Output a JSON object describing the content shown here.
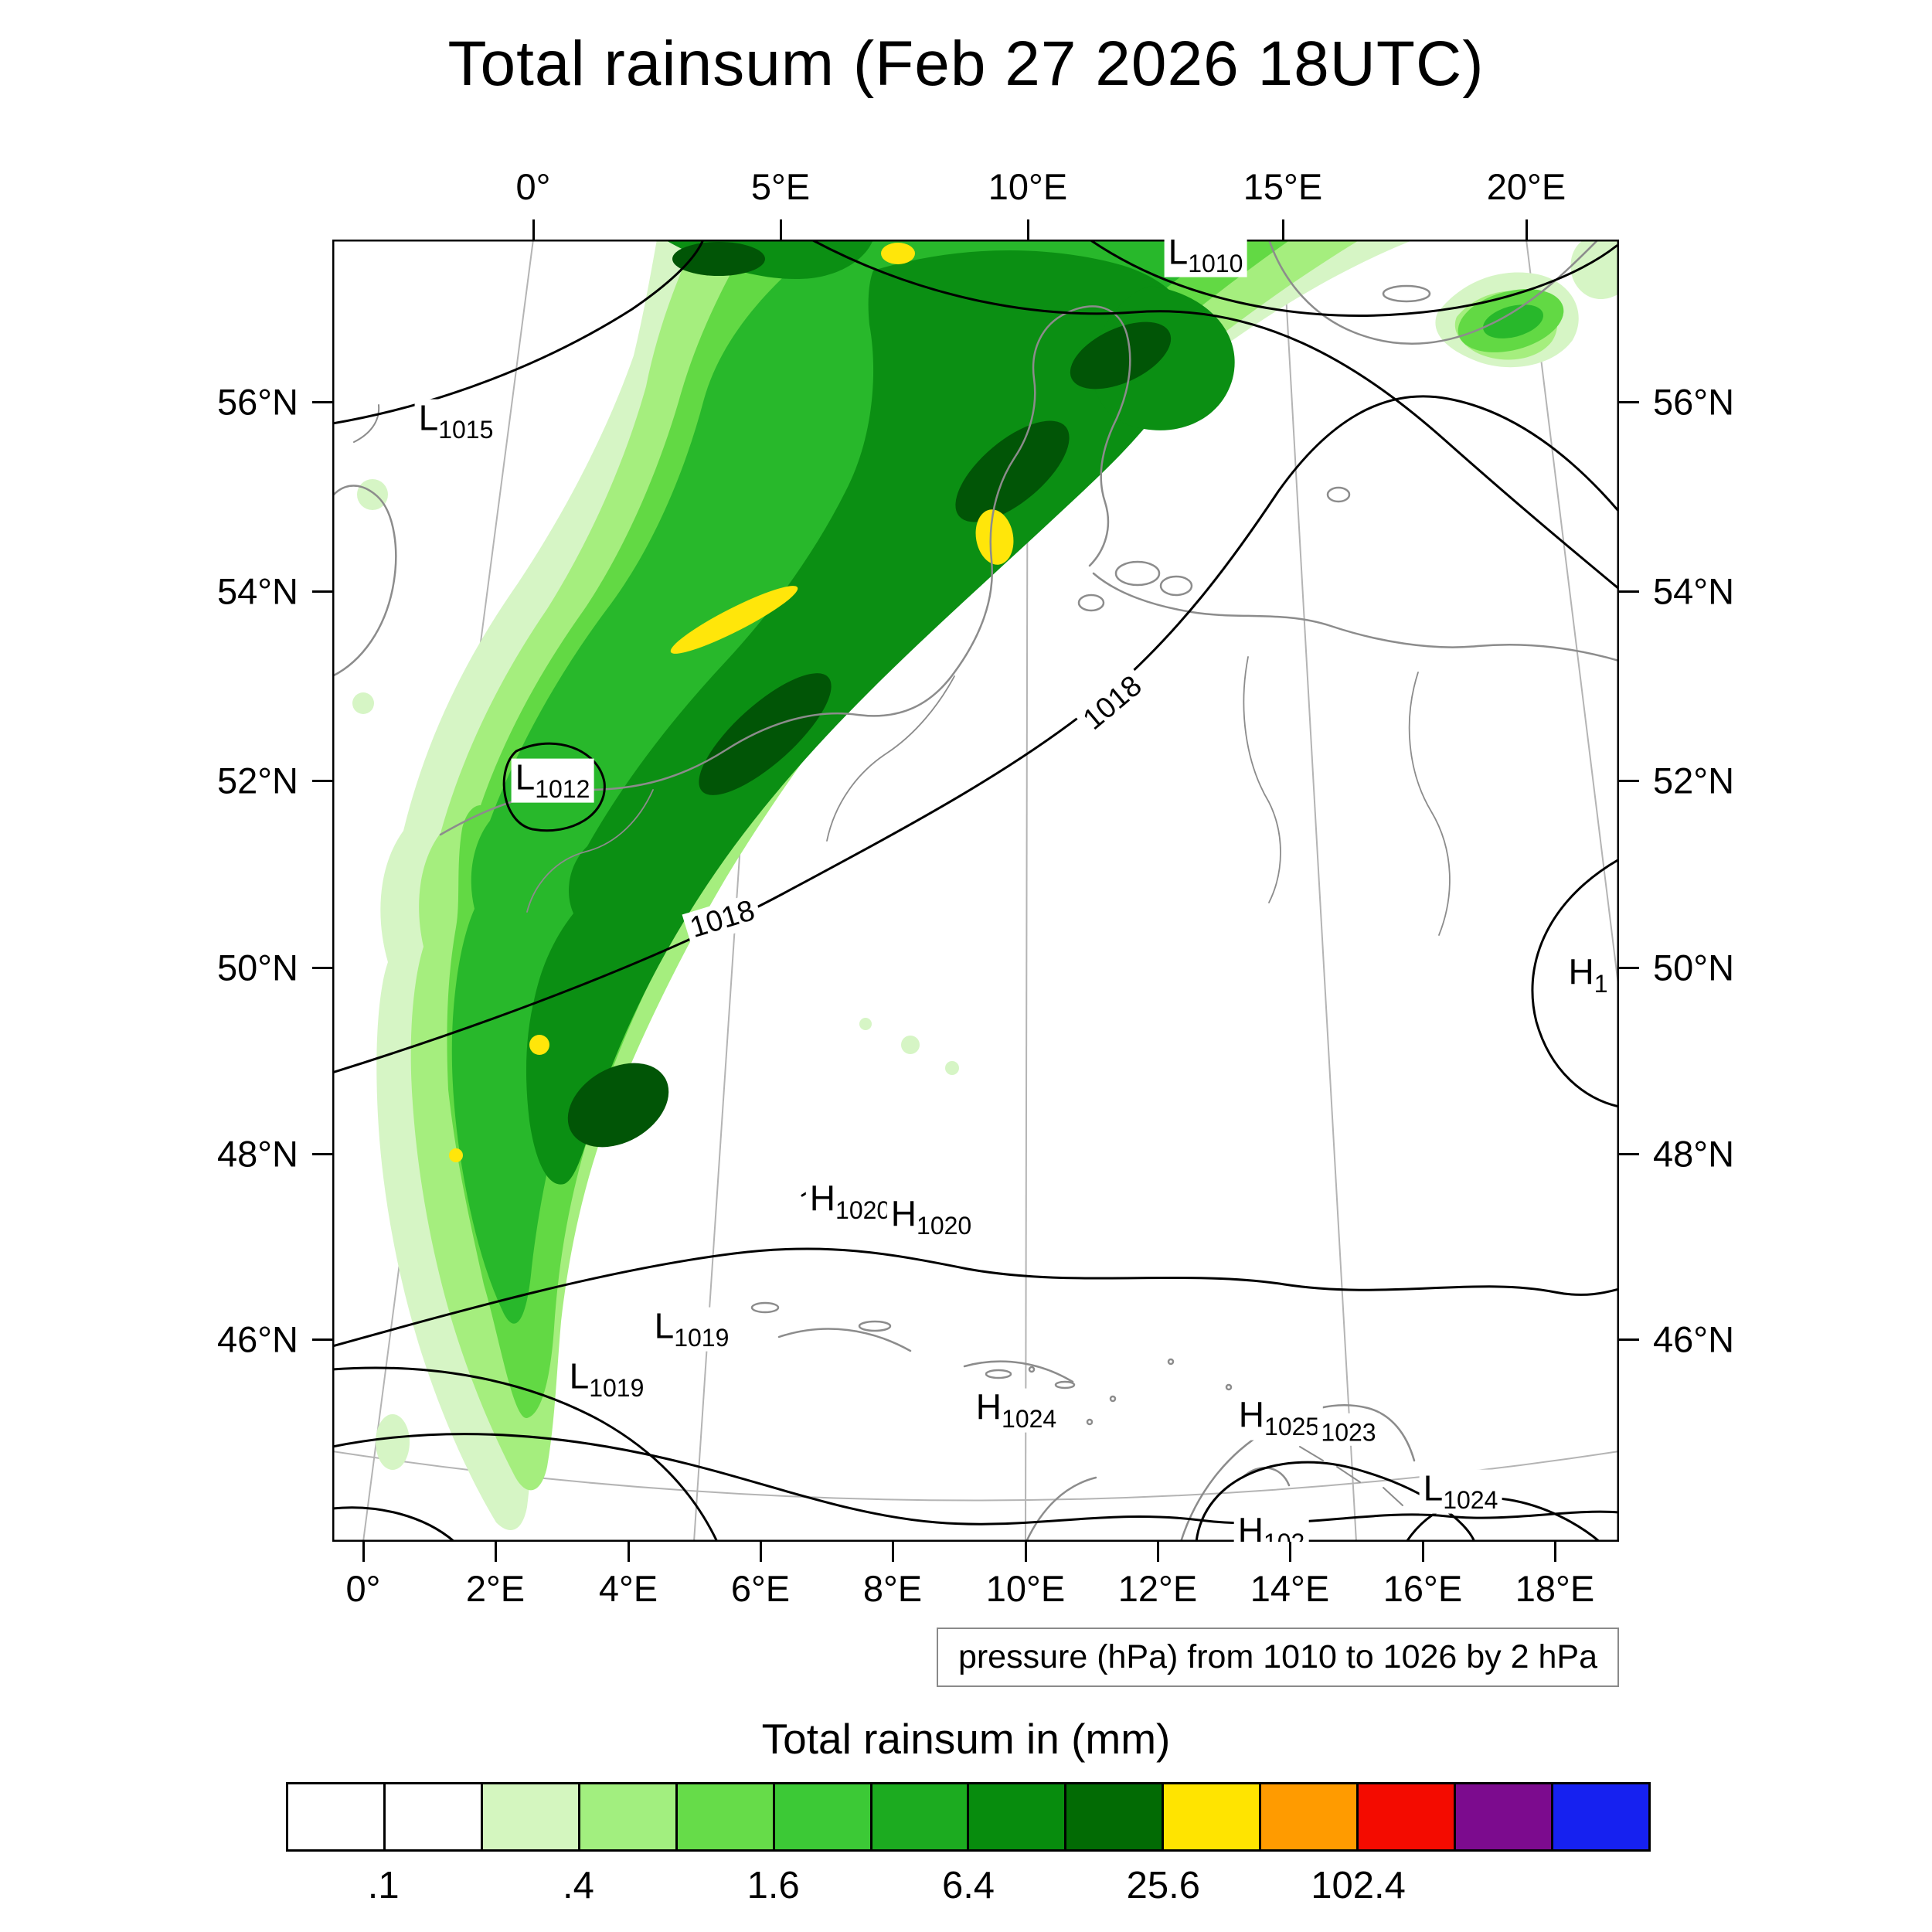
{
  "title": "Total rainsum (Feb 27 2026 18UTC)",
  "map": {
    "top_axis_ticks": [
      "0°",
      "5°E",
      "10°E",
      "15°E",
      "20°E"
    ],
    "bottom_axis_ticks": [
      "0°",
      "2°E",
      "4°E",
      "6°E",
      "8°E",
      "10°E",
      "12°E",
      "14°E",
      "16°E",
      "18°E"
    ],
    "left_axis_ticks": [
      "56°N",
      "54°N",
      "52°N",
      "50°N",
      "48°N",
      "46°N"
    ],
    "right_axis_ticks": [
      "56°N",
      "54°N",
      "52°N",
      "50°N",
      "48°N",
      "46°N"
    ],
    "contour_labels": [
      "1018",
      "1018"
    ],
    "pressure_centers": [
      {
        "letter": "L",
        "value": "1015"
      },
      {
        "letter": "L",
        "value": "1010"
      },
      {
        "letter": "L",
        "value": "1012"
      },
      {
        "letter": "H",
        "value": "1020"
      },
      {
        "letter": "H",
        "value": "1020"
      },
      {
        "letter": "L",
        "value": "1019"
      },
      {
        "letter": "L",
        "value": "1019"
      },
      {
        "letter": "H",
        "value": "1024"
      },
      {
        "letter": "H",
        "value": "1025"
      },
      {
        "letter": "",
        "value": "1023"
      },
      {
        "letter": "L",
        "value": "1024"
      },
      {
        "letter": "H",
        "value": "1"
      },
      {
        "letter": "H",
        "value": "102"
      }
    ]
  },
  "pressure_note": "pressure (hPa) from 1010 to 1026 by 2 hPa",
  "colorbar": {
    "title": "Total rainsum in (mm)",
    "tick_labels": [
      ".1",
      ".4",
      "1.6",
      "6.4",
      "25.6",
      "102.4"
    ],
    "cell_colors": [
      "#ffffff",
      "#ffffff",
      "#d4f6bf",
      "#a2ef7f",
      "#66dc49",
      "#3cc936",
      "#1cab20",
      "#078c0d",
      "#026b04",
      "#ffe400",
      "#ff9b00",
      "#f40b00",
      "#7c0b8e",
      "#1621f0"
    ]
  },
  "chart_data": {
    "type": "heatmap",
    "title": "Total rainsum (Feb 27 2026 18UTC)",
    "field": "Total rainsum in (mm)",
    "x_ticks_lon_top_deg_e": [
      0,
      5,
      10,
      15,
      20
    ],
    "x_ticks_lon_bottom_deg_e": [
      0,
      2,
      4,
      6,
      8,
      10,
      12,
      14,
      16,
      18
    ],
    "y_ticks_lat_deg_n": [
      56,
      54,
      52,
      50,
      48,
      46
    ],
    "shade_levels_mm": [
      0.1,
      0.2,
      0.4,
      0.8,
      1.6,
      3.2,
      6.4,
      12.8,
      25.6,
      51.2,
      102.4,
      204.8
    ],
    "shade_level_labels": [
      ".1",
      ".4",
      "1.6",
      "6.4",
      "25.6",
      "102.4"
    ],
    "overlay_contours": {
      "variable": "pressure (hPa)",
      "min_hpa": 1010,
      "max_hpa": 1026,
      "interval_hpa": 2,
      "labeled_values": [
        1018,
        1018
      ]
    },
    "pressure_centers": [
      {
        "type": "L",
        "value_hpa": 1015,
        "lon_e": -1.2,
        "lat_n": 55.7
      },
      {
        "type": "L",
        "value_hpa": 1010,
        "lon_e": 13.3,
        "lat_n": 57.5
      },
      {
        "type": "L",
        "value_hpa": 1012,
        "lon_e": 1.4,
        "lat_n": 51.9
      },
      {
        "type": "H",
        "value_hpa": 1020,
        "lon_e": 6.9,
        "lat_n": 47.5
      },
      {
        "type": "H",
        "value_hpa": 1020,
        "lon_e": 8.1,
        "lat_n": 47.4
      },
      {
        "type": "L",
        "value_hpa": 1019,
        "lon_e": 4.6,
        "lat_n": 46.2
      },
      {
        "type": "L",
        "value_hpa": 1019,
        "lon_e": 3.2,
        "lat_n": 45.7
      },
      {
        "type": "H",
        "value_hpa": 1024,
        "lon_e": 9.7,
        "lat_n": 45.3
      },
      {
        "type": "H",
        "value_hpa": 1025,
        "lon_e": 13.7,
        "lat_n": 45.2
      },
      {
        "type": "H",
        "value_hpa": 1023,
        "lon_e": 14.8,
        "lat_n": 45.1
      },
      {
        "type": "L",
        "value_hpa": 1024,
        "lon_e": 16.5,
        "lat_n": 44.6
      }
    ],
    "precipitation_band": "SW-NE oriented rain band from ~0°E/47°N across Germany and Denmark to ~14°E/57.5°N; core 6.4-25.6 mm with local maxima >25.6 mm (yellow) near 5°E/53.8°N, 8.5°E/54.8°N and 2°E/49.5°N; dry southeastern half"
  }
}
